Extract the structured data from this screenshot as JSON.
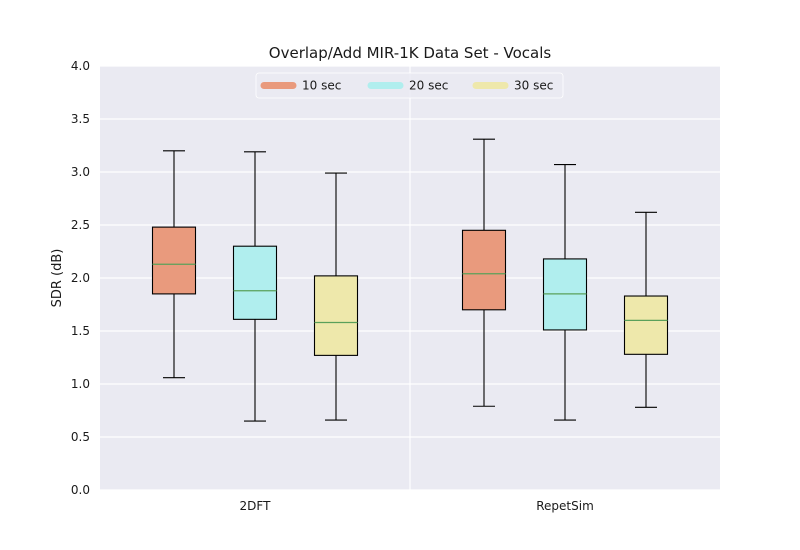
{
  "chart_data": {
    "type": "boxplot",
    "title": "Overlap/Add MIR-1K Data Set - Vocals",
    "xlabel": "",
    "ylabel": "SDR (dB)",
    "ylim": [
      0.0,
      4.0
    ],
    "yticks": [
      "0.0",
      "0.5",
      "1.0",
      "1.5",
      "2.0",
      "2.5",
      "3.0",
      "3.5",
      "4.0"
    ],
    "grid": true,
    "legend_position": "top-center",
    "colors": {
      "background": "#eaeaf2",
      "grid": "#ffffff",
      "median": "#5aa05a",
      "whisker": "#000000",
      "10 sec": "#e99a7d",
      "20 sec": "#b0eeee",
      "30 sec": "#eee8ab"
    },
    "groups": [
      "2DFT",
      "RepetSim"
    ],
    "series": [
      {
        "name": "10 sec",
        "color": "#e99a7d",
        "boxes": [
          {
            "group": "2DFT",
            "min": 1.06,
            "q1": 1.85,
            "median": 2.13,
            "q3": 2.48,
            "max": 3.2
          },
          {
            "group": "RepetSim",
            "min": 0.79,
            "q1": 1.7,
            "median": 2.04,
            "q3": 2.45,
            "max": 3.31
          }
        ]
      },
      {
        "name": "20 sec",
        "color": "#b0eeee",
        "boxes": [
          {
            "group": "2DFT",
            "min": 0.65,
            "q1": 1.61,
            "median": 1.88,
            "q3": 2.3,
            "max": 3.19
          },
          {
            "group": "RepetSim",
            "min": 0.66,
            "q1": 1.51,
            "median": 1.85,
            "q3": 2.18,
            "max": 3.07
          }
        ]
      },
      {
        "name": "30 sec",
        "color": "#eee8ab",
        "boxes": [
          {
            "group": "2DFT",
            "min": 0.66,
            "q1": 1.27,
            "median": 1.58,
            "q3": 2.02,
            "max": 2.99
          },
          {
            "group": "RepetSim",
            "min": 0.78,
            "q1": 1.28,
            "median": 1.6,
            "q3": 1.83,
            "max": 2.62
          }
        ]
      }
    ]
  }
}
